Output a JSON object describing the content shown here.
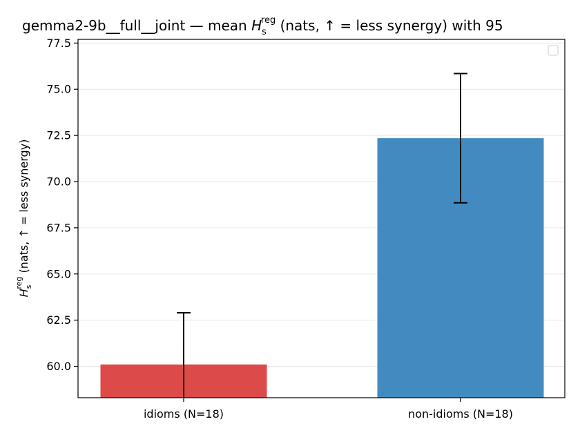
{
  "chart_data": {
    "type": "bar",
    "title": {
      "prefix": "gemma2-9b__full__joint — mean ",
      "symbol": "H",
      "subscript": "s",
      "superscript": "reg",
      "suffix": " (nats, ↑ = less synergy) with 95"
    },
    "ylabel": {
      "symbol": "H",
      "subscript": "s",
      "superscript": "reg",
      "suffix": " (nats, ↑ = less synergy)"
    },
    "xlabel": "",
    "categories": [
      "idioms (N=18)",
      "non-idioms (N=18)"
    ],
    "values": [
      60.1,
      72.35
    ],
    "error_low": [
      57.3,
      68.85
    ],
    "error_high": [
      62.9,
      75.85
    ],
    "ylim": [
      58.3,
      77.7
    ],
    "yticks": [
      60.0,
      62.5,
      65.0,
      67.5,
      70.0,
      72.5,
      75.0,
      77.5
    ],
    "ytick_labels": [
      "60.0",
      "62.5",
      "65.0",
      "67.5",
      "70.0",
      "72.5",
      "75.0",
      "77.5"
    ],
    "grid": "horizontal",
    "legend": "top-right (empty)",
    "colors": [
      "#dc4a4a",
      "#428bc0"
    ],
    "errorbar_color": "#000000"
  }
}
